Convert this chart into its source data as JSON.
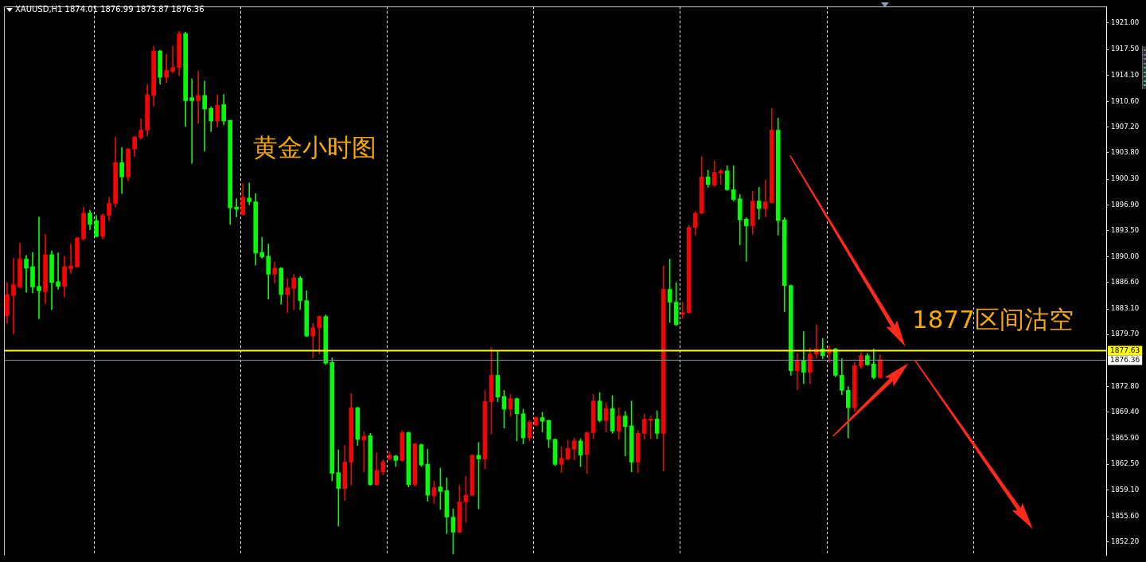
{
  "chart_data": {
    "type": "candlestick",
    "title": "XAUUSD,H1 1874.01 1876.99 1873.87 1876.36",
    "categories": [
      null,
      null,
      null,
      null,
      null,
      null,
      null,
      null,
      null,
      null,
      null,
      null,
      null,
      null,
      null,
      null,
      null,
      null,
      null,
      null,
      null,
      null,
      null,
      null,
      null,
      null,
      null,
      null,
      null,
      null,
      null,
      null,
      null,
      null,
      null,
      null,
      null,
      null,
      null,
      null,
      null,
      null,
      null,
      null,
      null,
      null,
      null,
      null,
      null,
      null,
      null,
      null,
      null,
      null,
      null,
      null,
      null,
      null,
      null,
      null,
      null,
      null,
      null,
      null,
      null,
      null,
      null,
      null,
      null,
      null,
      null,
      null,
      null,
      null,
      null,
      null,
      null,
      null,
      null,
      null,
      null,
      null,
      null,
      null,
      null,
      null,
      null,
      null,
      null,
      null,
      null,
      null,
      null,
      null,
      null,
      null,
      null,
      null,
      null,
      null,
      null,
      null,
      null,
      null,
      null,
      null,
      null,
      null,
      null,
      null,
      null,
      null,
      null,
      null,
      null,
      null,
      null,
      null,
      null,
      null,
      null,
      null,
      null,
      null,
      null,
      null,
      null,
      null,
      null,
      null,
      null,
      null,
      null,
      null,
      null,
      null,
      null,
      null,
      null,
      null,
      null,
      null,
      null,
      null,
      null,
      null,
      null,
      null,
      null,
      null,
      null,
      null,
      null,
      null,
      null,
      null,
      null,
      null,
      null,
      null,
      null,
      null,
      null,
      null,
      null,
      null,
      null,
      null,
      null,
      null,
      null,
      null,
      null
    ],
    "ohlc": [
      [
        1882.2,
        1886.6,
        1881.2,
        1885.0
      ],
      [
        1884.9,
        1889.8,
        1879.8,
        1886.3
      ],
      [
        1886.0,
        1891.8,
        1885.9,
        1889.7
      ],
      [
        1889.7,
        1890.2,
        1885.3,
        1888.5
      ],
      [
        1888.7,
        1890.6,
        1885.2,
        1886.0
      ],
      [
        1886.1,
        1895.3,
        1881.8,
        1885.5
      ],
      [
        1885.4,
        1893.0,
        1883.8,
        1890.3
      ],
      [
        1890.3,
        1890.8,
        1883.0,
        1886.6
      ],
      [
        1886.7,
        1890.5,
        1885.7,
        1886.1
      ],
      [
        1886.1,
        1890.1,
        1884.7,
        1888.7
      ],
      [
        1888.4,
        1891.7,
        1887.8,
        1888.8
      ],
      [
        1888.7,
        1892.6,
        1888.6,
        1892.5
      ],
      [
        1892.4,
        1896.6,
        1892.2,
        1895.8
      ],
      [
        1895.8,
        1896.2,
        1893.6,
        1894.3
      ],
      [
        1894.8,
        1895.5,
        1892.6,
        1892.7
      ],
      [
        1892.7,
        1895.7,
        1892.4,
        1895.5
      ],
      [
        1895.5,
        1897.9,
        1894.8,
        1897.1
      ],
      [
        1897.1,
        1905.9,
        1896.6,
        1902.5
      ],
      [
        1902.5,
        1904.5,
        1898.4,
        1900.6
      ],
      [
        1900.6,
        1904.4,
        1900.1,
        1904.3
      ],
      [
        1904.3,
        1906.0,
        1903.3,
        1905.9
      ],
      [
        1905.8,
        1908.3,
        1905.6,
        1906.8
      ],
      [
        1906.8,
        1912.8,
        1906.0,
        1911.5
      ],
      [
        1911.4,
        1917.9,
        1910.0,
        1917.3
      ],
      [
        1917.3,
        1917.4,
        1912.9,
        1913.8
      ],
      [
        1913.8,
        1916.9,
        1913.1,
        1914.7
      ],
      [
        1914.6,
        1917.9,
        1914.4,
        1915.1
      ],
      [
        1915.1,
        1919.9,
        1914.0,
        1919.6
      ],
      [
        1919.6,
        1919.8,
        1907.3,
        1910.7
      ],
      [
        1911.1,
        1913.6,
        1902.4,
        1910.7
      ],
      [
        1910.7,
        1914.6,
        1907.7,
        1911.4
      ],
      [
        1911.4,
        1913.3,
        1904.0,
        1909.6
      ],
      [
        1909.7,
        1909.9,
        1906.6,
        1908.0
      ],
      [
        1908.0,
        1911.5,
        1907.2,
        1910.1
      ],
      [
        1910.2,
        1911.5,
        1907.5,
        1908.0
      ],
      [
        1908.1,
        1908.1,
        1894.3,
        1896.5
      ],
      [
        1896.6,
        1897.7,
        1895.3,
        1896.3
      ],
      [
        1895.6,
        1899.7,
        1895.5,
        1897.9
      ],
      [
        1897.8,
        1899.8,
        1896.9,
        1897.3
      ],
      [
        1897.3,
        1898.4,
        1888.9,
        1890.5
      ],
      [
        1890.6,
        1892.6,
        1889.8,
        1890.0
      ],
      [
        1890.1,
        1891.7,
        1884.4,
        1887.7
      ],
      [
        1887.7,
        1889.3,
        1886.5,
        1888.5
      ],
      [
        1888.5,
        1888.6,
        1883.7,
        1885.0
      ],
      [
        1885.0,
        1887.1,
        1882.6,
        1885.9
      ],
      [
        1885.8,
        1887.7,
        1883.0,
        1887.2
      ],
      [
        1887.2,
        1887.4,
        1883.0,
        1884.2
      ],
      [
        1884.2,
        1885.5,
        1879.4,
        1879.5
      ],
      [
        1879.5,
        1881.2,
        1876.6,
        1880.6
      ],
      [
        1880.6,
        1882.2,
        1877.1,
        1882.1
      ],
      [
        1882.1,
        1882.3,
        1875.7,
        1875.9
      ],
      [
        1876.0,
        1876.6,
        1860.3,
        1861.3
      ],
      [
        1861.4,
        1864.4,
        1854.3,
        1859.3
      ],
      [
        1859.3,
        1865.0,
        1857.7,
        1862.8
      ],
      [
        1862.8,
        1871.9,
        1859.7,
        1870.0
      ],
      [
        1870.0,
        1870.1,
        1865.0,
        1865.8
      ],
      [
        1865.7,
        1866.8,
        1861.5,
        1866.2
      ],
      [
        1866.3,
        1866.6,
        1859.7,
        1859.8
      ],
      [
        1859.8,
        1864.0,
        1859.7,
        1861.7
      ],
      [
        1861.5,
        1863.1,
        1861.1,
        1862.8
      ],
      [
        1863.2,
        1864.2,
        1863.1,
        1863.7
      ],
      [
        1863.6,
        1863.7,
        1862.2,
        1863.0
      ],
      [
        1863.0,
        1867.0,
        1862.9,
        1866.7
      ],
      [
        1866.7,
        1866.8,
        1859.5,
        1859.8
      ],
      [
        1859.8,
        1865.3,
        1859.6,
        1865.2
      ],
      [
        1865.1,
        1865.2,
        1862.2,
        1862.4
      ],
      [
        1862.5,
        1864.5,
        1857.6,
        1858.4
      ],
      [
        1858.3,
        1860.3,
        1857.3,
        1859.4
      ],
      [
        1859.5,
        1862.0,
        1856.5,
        1858.9
      ],
      [
        1859.0,
        1860.7,
        1853.3,
        1855.5
      ],
      [
        1855.5,
        1856.6,
        1850.6,
        1853.5
      ],
      [
        1853.5,
        1859.7,
        1853.4,
        1857.5
      ],
      [
        1857.5,
        1860.9,
        1854.8,
        1858.4
      ],
      [
        1858.4,
        1863.8,
        1858.3,
        1863.7
      ],
      [
        1863.7,
        1865.4,
        1856.6,
        1863.2
      ],
      [
        1863.2,
        1872.3,
        1861.9,
        1870.8
      ],
      [
        1870.8,
        1878.0,
        1866.5,
        1874.3
      ],
      [
        1874.3,
        1877.5,
        1870.8,
        1871.4
      ],
      [
        1871.5,
        1872.3,
        1867.3,
        1869.8
      ],
      [
        1869.8,
        1871.8,
        1868.9,
        1871.2
      ],
      [
        1871.2,
        1871.3,
        1865.6,
        1869.2
      ],
      [
        1869.2,
        1869.8,
        1865.2,
        1866.0
      ],
      [
        1866.0,
        1868.3,
        1865.6,
        1868.1
      ],
      [
        1867.7,
        1868.8,
        1867.6,
        1868.7
      ],
      [
        1868.7,
        1869.4,
        1866.8,
        1868.2
      ],
      [
        1868.3,
        1868.4,
        1864.7,
        1865.8
      ],
      [
        1865.8,
        1865.9,
        1862.3,
        1862.5
      ],
      [
        1862.5,
        1864.8,
        1861.4,
        1863.3
      ],
      [
        1863.2,
        1865.7,
        1863.1,
        1864.6
      ],
      [
        1864.5,
        1866.0,
        1863.1,
        1865.6
      ],
      [
        1865.6,
        1865.9,
        1862.2,
        1863.7
      ],
      [
        1863.8,
        1866.8,
        1861.3,
        1866.7
      ],
      [
        1866.7,
        1871.8,
        1865.9,
        1870.9
      ],
      [
        1870.9,
        1872.0,
        1868.1,
        1868.3
      ],
      [
        1868.3,
        1870.6,
        1866.8,
        1869.9
      ],
      [
        1869.9,
        1871.6,
        1866.6,
        1866.9
      ],
      [
        1866.9,
        1870.0,
        1865.8,
        1868.9
      ],
      [
        1868.9,
        1869.5,
        1863.6,
        1867.5
      ],
      [
        1867.6,
        1870.9,
        1861.5,
        1862.8
      ],
      [
        1862.8,
        1867.0,
        1861.4,
        1866.6
      ],
      [
        1866.6,
        1869.2,
        1865.8,
        1868.5
      ],
      [
        1868.3,
        1868.9,
        1865.9,
        1868.5
      ],
      [
        1868.5,
        1869.6,
        1865.9,
        1866.6
      ],
      [
        1866.6,
        1888.8,
        1861.6,
        1885.7
      ],
      [
        1885.7,
        1889.7,
        1881.3,
        1884.0
      ],
      [
        1884.0,
        1886.6,
        1880.9,
        1881.0
      ],
      [
        1882.4,
        1884.0,
        1881.8,
        1882.6
      ],
      [
        1882.6,
        1894.2,
        1882.5,
        1893.9
      ],
      [
        1893.9,
        1896.0,
        1892.9,
        1895.8
      ],
      [
        1895.8,
        1903.3,
        1895.7,
        1900.6
      ],
      [
        1900.6,
        1901.5,
        1899.2,
        1899.6
      ],
      [
        1899.5,
        1902.7,
        1899.3,
        1901.2
      ],
      [
        1901.1,
        1901.6,
        1899.6,
        1901.4
      ],
      [
        1901.4,
        1902.1,
        1898.8,
        1898.9
      ],
      [
        1898.9,
        1902.1,
        1897.4,
        1897.6
      ],
      [
        1897.7,
        1898.3,
        1891.6,
        1894.9
      ],
      [
        1895.0,
        1895.2,
        1889.4,
        1894.1
      ],
      [
        1894.1,
        1898.7,
        1893.0,
        1897.4
      ],
      [
        1897.4,
        1899.2,
        1895.0,
        1896.4
      ],
      [
        1896.4,
        1900.2,
        1895.3,
        1897.3
      ],
      [
        1897.2,
        1909.7,
        1897.1,
        1906.8
      ],
      [
        1906.8,
        1908.4,
        1892.9,
        1894.8
      ],
      [
        1894.9,
        1895.2,
        1882.7,
        1886.2
      ],
      [
        1886.2,
        1886.3,
        1874.3,
        1874.9
      ],
      [
        1874.9,
        1877.2,
        1872.4,
        1876.2
      ],
      [
        1876.2,
        1880.1,
        1873.2,
        1874.7
      ],
      [
        1874.7,
        1877.9,
        1873.2,
        1877.1
      ],
      [
        1877.1,
        1881.0,
        1876.6,
        1877.8
      ],
      [
        1877.8,
        1879.2,
        1876.5,
        1876.9
      ],
      [
        1877.2,
        1878.2,
        1876.0,
        1877.8
      ],
      [
        1877.8,
        1877.9,
        1874.1,
        1874.3
      ],
      [
        1874.3,
        1876.5,
        1871.7,
        1872.3
      ],
      [
        1872.3,
        1872.8,
        1866.0,
        1870.0
      ],
      [
        1870.0,
        1876.0,
        1869.5,
        1875.6
      ],
      [
        1875.5,
        1877.3,
        1875.2,
        1876.9
      ],
      [
        1876.9,
        1877.2,
        1875.6,
        1875.7
      ],
      [
        1875.8,
        1877.8,
        1873.8,
        1874.0
      ],
      [
        1874.01,
        1876.99,
        1873.87,
        1876.36
      ],
      null,
      null,
      null,
      null,
      null,
      null,
      null,
      null,
      null,
      null,
      null,
      null,
      null,
      null,
      null,
      null,
      null,
      null,
      null,
      null,
      null,
      null,
      null,
      null,
      null,
      null,
      null,
      null,
      null,
      null,
      null,
      null,
      null,
      null,
      null
    ],
    "colors": [
      "#ff0000",
      "#ff0000",
      "#ff0000",
      "#00ff00",
      "#00ff00",
      "#00ff00",
      "#ff0000",
      "#00ff00",
      "#00ff00",
      "#ff0000",
      "#ff0000",
      "#ff0000",
      "#ff0000",
      "#00ff00",
      "#00ff00",
      "#ff0000",
      "#ff0000",
      "#ff0000",
      "#00ff00",
      "#ff0000",
      "#ff0000",
      "#ff0000",
      "#ff0000",
      "#ff0000",
      "#00ff00",
      "#ff0000",
      "#ff0000",
      "#ff0000",
      "#00ff00",
      "#00ff00",
      "#ff0000",
      "#00ff00",
      "#00ff00",
      "#ff0000",
      "#00ff00",
      "#00ff00",
      "#00ff00",
      "#ff0000",
      "#00ff00",
      "#00ff00",
      "#00ff00",
      "#00ff00",
      "#ff0000",
      "#00ff00",
      "#ff0000",
      "#ff0000",
      "#00ff00",
      "#00ff00",
      "#ff0000",
      "#ff0000",
      "#00ff00",
      "#00ff00",
      "#00ff00",
      "#ff0000",
      "#ff0000",
      "#00ff00",
      "#ff0000",
      "#00ff00",
      "#ff0000",
      "#ff0000",
      "#ff0000",
      "#00ff00",
      "#ff0000",
      "#00ff00",
      "#ff0000",
      "#00ff00",
      "#00ff00",
      "#ff0000",
      "#00ff00",
      "#00ff00",
      "#00ff00",
      "#ff0000",
      "#ff0000",
      "#ff0000",
      "#00ff00",
      "#ff0000",
      "#ff0000",
      "#00ff00",
      "#00ff00",
      "#ff0000",
      "#00ff00",
      "#00ff00",
      "#ff0000",
      "#ff0000",
      "#00ff00",
      "#00ff00",
      "#00ff00",
      "#ff0000",
      "#ff0000",
      "#ff0000",
      "#00ff00",
      "#ff0000",
      "#ff0000",
      "#00ff00",
      "#ff0000",
      "#00ff00",
      "#ff0000",
      "#00ff00",
      "#00ff00",
      "#ff0000",
      "#ff0000",
      "#ff0000",
      "#00ff00",
      "#ff0000",
      "#00ff00",
      "#00ff00",
      "#ff0000",
      "#ff0000",
      "#ff0000",
      "#ff0000",
      "#00ff00",
      "#ff0000",
      "#ff0000",
      "#00ff00",
      "#00ff00",
      "#00ff00",
      "#00ff00",
      "#ff0000",
      "#00ff00",
      "#ff0000",
      "#ff0000",
      "#00ff00",
      "#00ff00",
      "#00ff00",
      "#ff0000",
      "#00ff00",
      "#ff0000",
      "#ff0000",
      "#00ff00",
      "#ff0000",
      "#00ff00",
      "#00ff00",
      "#00ff00",
      "#ff0000",
      "#ff0000",
      "#00ff00",
      "#00ff00",
      "#ff0000",
      null,
      null,
      null,
      null,
      null,
      null,
      null,
      null,
      null,
      null,
      null,
      null,
      null,
      null,
      null,
      null,
      null,
      null,
      null,
      null,
      null,
      null,
      null,
      null,
      null,
      null,
      null,
      null,
      null,
      null,
      null,
      null,
      null,
      null,
      null
    ],
    "ylim": [
      1850.4,
      1923.2
    ],
    "yticks": [
      {
        "value": 1921,
        "label": "1921.00"
      },
      {
        "value": 1917.5,
        "label": "1917.50"
      },
      {
        "value": 1914.1,
        "label": "1914.10"
      },
      {
        "value": 1910.6,
        "label": "1910.60"
      },
      {
        "value": 1907.2,
        "label": "1907.20"
      },
      {
        "value": 1903.8,
        "label": "1903.80"
      },
      {
        "value": 1900.3,
        "label": "1900.30"
      },
      {
        "value": 1896.9,
        "label": "1896.90"
      },
      {
        "value": 1893.5,
        "label": "1893.50"
      },
      {
        "value": 1890,
        "label": "1890.00"
      },
      {
        "value": 1886.6,
        "label": "1886.60"
      },
      {
        "value": 1883.1,
        "label": "1883.10"
      },
      {
        "value": 1879.7,
        "label": "1879.70"
      },
      {
        "value": 1872.8,
        "label": "1872.80"
      },
      {
        "value": 1869.4,
        "label": "1869.40"
      },
      {
        "value": 1865.9,
        "label": "1865.90"
      },
      {
        "value": 1862.5,
        "label": "1862.50"
      },
      {
        "value": 1859.1,
        "label": "1859.10"
      },
      {
        "value": 1855.6,
        "label": "1855.60"
      },
      {
        "value": 1852.2,
        "label": "1852.20"
      }
    ],
    "ref_lines": [
      {
        "axis": "y",
        "value": 1877.63,
        "label": "1877.63",
        "color": "#ffff00"
      },
      {
        "axis": "y",
        "value": 1876.36,
        "label": "1876.36",
        "color": "#8090a0"
      }
    ],
    "annotations": [
      "黄金小时图",
      "1877区间沽空"
    ],
    "grid": false,
    "legend": false,
    "tick_labels": "y"
  }
}
